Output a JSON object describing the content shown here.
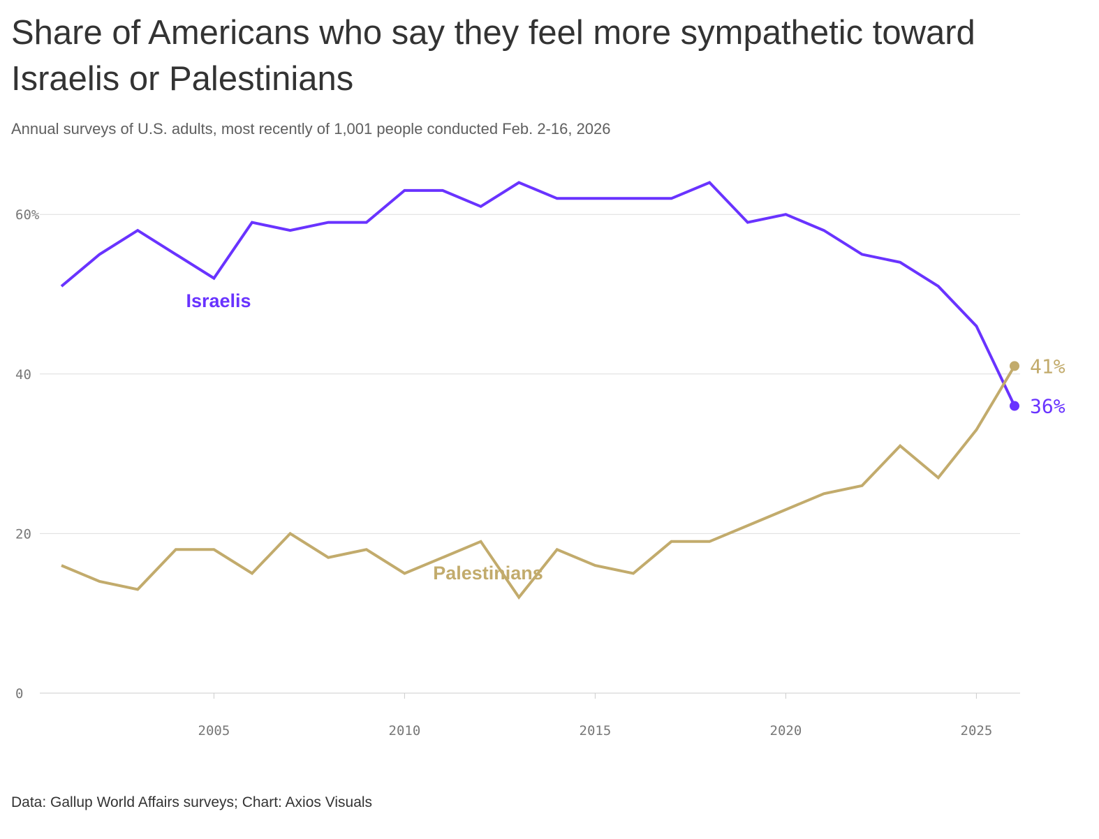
{
  "header": {
    "title": "Share of Americans who say they feel more sympathetic toward Israelis or Palestinians",
    "subtitle": "Annual surveys of U.S. adults, most recently of 1,001 people conducted Feb. 2-16, 2026"
  },
  "footer": {
    "source": "Data: Gallup World Affairs surveys; Chart: Axios Visuals"
  },
  "colors": {
    "israelis": "#6933ff",
    "palestinians": "#c2ab6c",
    "grid": "#dddddd",
    "axis": "#cccccc"
  },
  "chart_data": {
    "type": "line",
    "x": [
      2001,
      2002,
      2003,
      2004,
      2005,
      2006,
      2007,
      2008,
      2009,
      2010,
      2011,
      2012,
      2013,
      2014,
      2015,
      2016,
      2017,
      2018,
      2019,
      2020,
      2021,
      2022,
      2023,
      2024,
      2025,
      2026
    ],
    "series": [
      {
        "name": "Israelis",
        "color": "#6933ff",
        "values": [
          51,
          55,
          58,
          55,
          52,
          59,
          58,
          59,
          59,
          63,
          63,
          61,
          64,
          62,
          62,
          62,
          62,
          64,
          59,
          60,
          58,
          55,
          54,
          51,
          46,
          36
        ],
        "end_label": "36%"
      },
      {
        "name": "Palestinians",
        "color": "#c2ab6c",
        "values": [
          16,
          14,
          13,
          18,
          18,
          15,
          20,
          17,
          18,
          15,
          17,
          19,
          12,
          18,
          16,
          15,
          19,
          19,
          21,
          23,
          25,
          26,
          31,
          27,
          33,
          41
        ],
        "end_label": "41%"
      }
    ],
    "ylim": [
      0,
      60
    ],
    "y_ticks": [
      0,
      20,
      40,
      60
    ],
    "y_tick_labels": [
      "0",
      "20",
      "40",
      "60%"
    ],
    "x_ticks": [
      2005,
      2010,
      2015,
      2020,
      2025
    ],
    "x_tick_labels": [
      "2005",
      "2010",
      "2015",
      "2020",
      "2025"
    ],
    "grid": true,
    "xlabel": "",
    "ylabel": ""
  }
}
